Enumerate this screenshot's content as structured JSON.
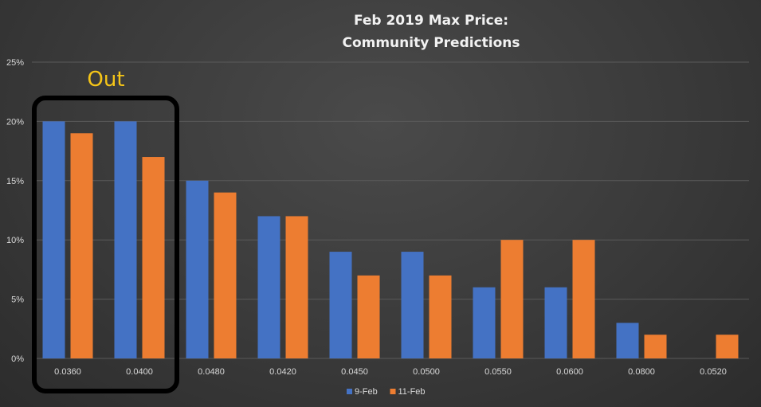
{
  "chart_data": {
    "type": "bar",
    "title": "Feb 2019 Max Price:",
    "subtitle": "Community Predictions",
    "categories": [
      "0.0360",
      "0.0400",
      "0.0480",
      "0.0420",
      "0.0450",
      "0.0500",
      "0.0550",
      "0.0600",
      "0.0800",
      "0.0520"
    ],
    "series": [
      {
        "name": "9-Feb",
        "values": [
          20,
          20,
          15,
          12,
          9,
          9,
          6,
          6,
          3,
          0
        ],
        "color": "#4472c4"
      },
      {
        "name": "11-Feb",
        "values": [
          19,
          17,
          14,
          12,
          7,
          7,
          10,
          10,
          2,
          2
        ],
        "color": "#ed7d31"
      }
    ],
    "ylim": [
      0,
      25
    ],
    "yticks": [
      "0%",
      "5%",
      "10%",
      "15%",
      "20%",
      "25%"
    ],
    "xlabel": "",
    "ylabel": "",
    "grid": true,
    "legend": "bottom",
    "annotation": {
      "text": "Out",
      "color": "#f5c518"
    }
  }
}
